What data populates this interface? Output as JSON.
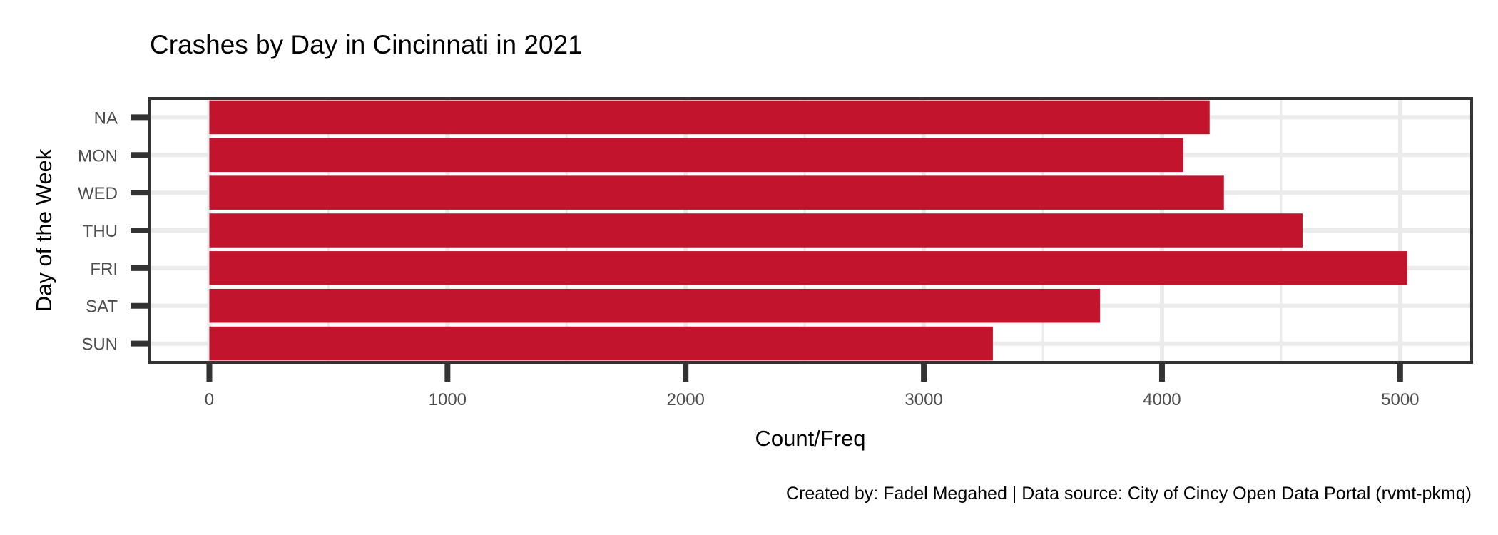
{
  "chart_data": {
    "type": "bar",
    "orientation": "horizontal",
    "title": "Crashes by Day in Cincinnati in 2021",
    "xlabel": "Count/Freq",
    "ylabel": "Day of the Week",
    "caption": "Created by: Fadel Megahed | Data source: City of Cincy Open Data Portal (rvmt-pkmq)",
    "categories": [
      "NA",
      "MON",
      "WED",
      "THU",
      "FRI",
      "SAT",
      "SUN"
    ],
    "values": [
      4200,
      4090,
      4260,
      4590,
      5030,
      3740,
      3290
    ],
    "xlim": [
      -250,
      5300
    ],
    "x_ticks": [
      0,
      1000,
      2000,
      3000,
      4000,
      5000
    ],
    "x_tick_labels": [
      "0",
      "1000",
      "2000",
      "3000",
      "4000",
      "5000"
    ],
    "grid": true,
    "legend": "none",
    "colors": {
      "bar": "#C3142D",
      "grid": "#EBEBEB",
      "panel_border": "#333333",
      "tick_mark": "#333333",
      "tick_label": "#4D4D4D"
    }
  }
}
